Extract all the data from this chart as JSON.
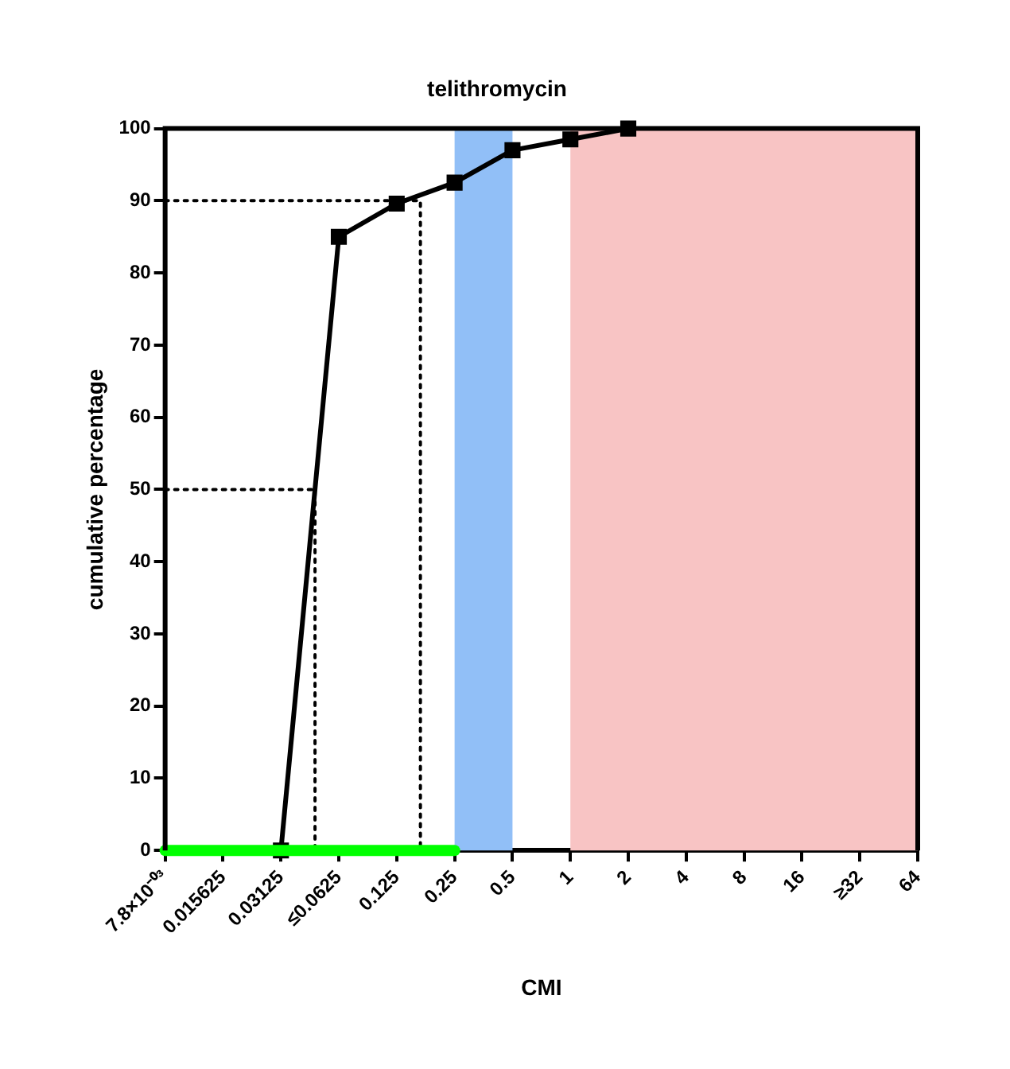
{
  "chart_data": {
    "type": "line",
    "title": "telithromycin",
    "xlabel": "CMI",
    "ylabel": "cumulative percentage",
    "log": "x",
    "xlim": [
      0.0078125,
      64
    ],
    "ylim": [
      0,
      100
    ],
    "xticks": [
      {
        "value": 0.0078125,
        "label": "7.8×10⁻⁰³"
      },
      0.015625,
      0.03125,
      {
        "value": 0.0625,
        "label": "≤0.0625"
      },
      0.125,
      0.25,
      0.5,
      1,
      2,
      4,
      8,
      16,
      {
        "value": 32,
        "label": "≥32"
      },
      64
    ],
    "yticks": [
      0,
      10,
      20,
      30,
      40,
      50,
      60,
      70,
      80,
      90,
      100
    ],
    "grid": false,
    "legend": false,
    "bands": [
      {
        "axis": "x",
        "from": 0.25,
        "to": 0.5,
        "color": "#91bff7"
      },
      {
        "axis": "x",
        "from": 1,
        "to": 64,
        "color": "#f8c4c4"
      }
    ],
    "series": [
      {
        "color": "#00ff00",
        "x": [
          0.0078125,
          0.25
        ],
        "values": [
          0,
          0
        ],
        "marker": "none",
        "line_style": "solid"
      },
      {
        "color": "#000000",
        "x": [
          0.0078125,
          0.047,
          0.047
        ],
        "values": [
          50,
          50,
          0
        ],
        "marker": "none",
        "line_style": "dotted"
      },
      {
        "color": "#000000",
        "x": [
          0.0078125,
          0.166,
          0.166
        ],
        "values": [
          90,
          90,
          0
        ],
        "marker": "none",
        "line_style": "dotted"
      },
      {
        "color": "#000000",
        "x": [
          0.03125,
          0.0625,
          0.125,
          0.25,
          0.5,
          1,
          2
        ],
        "values": [
          0,
          85,
          89.6,
          92.5,
          97,
          98.5,
          100
        ],
        "marker": "square",
        "line_style": "solid"
      }
    ]
  }
}
